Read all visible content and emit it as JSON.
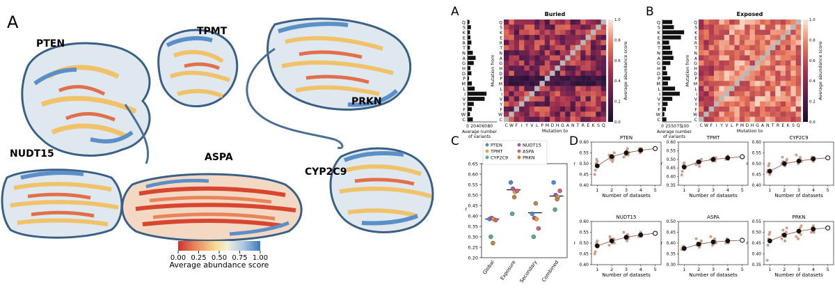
{
  "structures": {
    "panel_letter": "A",
    "proteins": [
      "PTEN",
      "TPMT",
      "PRKN",
      "NUDT15",
      "ASPA",
      "CYP2C9"
    ],
    "colorbar": {
      "ticks": [
        "0.00",
        "0.25",
        "0.50",
        "0.75",
        "1.00"
      ],
      "label": "Average abundance score",
      "colors": [
        "#c9342b",
        "#e8845a",
        "#f6d98e",
        "#f4efd8",
        "#a9c7e2",
        "#3c77b8"
      ]
    }
  },
  "heatmaps": {
    "residues": [
      "Q",
      "S",
      "K",
      "E",
      "R",
      "T",
      "N",
      "A",
      "G",
      "H",
      "D",
      "P",
      "M",
      "L",
      "I",
      "V",
      "Y",
      "F",
      "W",
      "C"
    ],
    "xticks": [
      "C",
      "W",
      "F",
      "I",
      "Y",
      "V",
      "L",
      "P",
      "M",
      "D",
      "H",
      "G",
      "A",
      "N",
      "T",
      "R",
      "E",
      "K",
      "S",
      "Q"
    ],
    "ylabel": "Mutation from",
    "xlabel": "Mutation to",
    "bar_xlabel": "Average number\nof variants",
    "cbar_label": "Average abundance score",
    "cbar_ticks": [
      "0.0",
      "0.2",
      "0.4",
      "0.6",
      "0.8",
      "1.0"
    ],
    "buried": {
      "letter": "A",
      "title": "Buried",
      "bar_ticks": [
        "0",
        "20",
        "40",
        "60",
        "80"
      ],
      "bar_max": 100,
      "bar_values": [
        8,
        14,
        10,
        12,
        16,
        10,
        22,
        34,
        26,
        12,
        16,
        6,
        18,
        30,
        80,
        72,
        26,
        18,
        10,
        22
      ]
    },
    "exposed": {
      "letter": "B",
      "title": "Exposed",
      "bar_ticks": [
        "0",
        "25",
        "50",
        "75",
        "100"
      ],
      "bar_max": 120,
      "bar_values": [
        50,
        58,
        110,
        94,
        34,
        40,
        50,
        56,
        40,
        18,
        24,
        40,
        28,
        64,
        88,
        50,
        26,
        18,
        10,
        20
      ]
    }
  },
  "chart_data": [
    {
      "type": "scatter",
      "panel_letter": "C",
      "categories": [
        "Global",
        "Exposure",
        "Secondary",
        "Combined"
      ],
      "ylabel": "r",
      "ylim": [
        0.2,
        0.65
      ],
      "yticks": [
        "0.20",
        "0.25",
        "0.30",
        "0.35",
        "0.40",
        "0.45",
        "0.50",
        "0.55",
        "0.60",
        "0.65"
      ],
      "legend": [
        {
          "name": "PTEN",
          "color": "#4c8cd0"
        },
        {
          "name": "NUDT15",
          "color": "#a85aa0"
        },
        {
          "name": "TPMT",
          "color": "#e8a33c"
        },
        {
          "name": "ASPA",
          "color": "#d6606f"
        },
        {
          "name": "CYP2C9",
          "color": "#5aae8a"
        },
        {
          "name": "PRKN",
          "color": "#b8864e"
        }
      ],
      "medians": [
        0.385,
        0.525,
        0.415,
        0.495
      ],
      "points": [
        [
          0.385,
          0.39,
          0.385,
          0.38,
          0.3,
          0.27
        ],
        [
          0.56,
          0.53,
          0.515,
          0.52,
          0.41,
          0.49
        ],
        [
          0.41,
          0.39,
          0.385,
          0.34,
          0.3,
          0.46
        ],
        [
          0.56,
          0.5,
          0.49,
          0.52,
          0.43,
          0.48
        ]
      ]
    },
    {
      "type": "scatter",
      "panel_letter": "D",
      "xlabel": "Number of datasets",
      "ylabel": "r",
      "xticks": [
        "1",
        "2",
        "3",
        "4",
        "5"
      ],
      "subplots": [
        {
          "title": "PTEN",
          "ylim": [
            0.4,
            0.6
          ],
          "yticks": [
            "0.40",
            "0.45",
            "0.50",
            "0.55",
            "0.60"
          ],
          "means": [
            0.49,
            0.533,
            0.55,
            0.562,
            0.57
          ],
          "scatter": [
            [
              1,
              0.45
            ],
            [
              1,
              0.47
            ],
            [
              1,
              0.5
            ],
            [
              1,
              0.52
            ],
            [
              1,
              0.51
            ],
            [
              2,
              0.51
            ],
            [
              2,
              0.52
            ],
            [
              2,
              0.53
            ],
            [
              2,
              0.55
            ],
            [
              2,
              0.54
            ],
            [
              2,
              0.53
            ],
            [
              2,
              0.52
            ],
            [
              3,
              0.54
            ],
            [
              3,
              0.55
            ],
            [
              3,
              0.56
            ],
            [
              3,
              0.57
            ],
            [
              3,
              0.54
            ],
            [
              3,
              0.55
            ],
            [
              3,
              0.53
            ],
            [
              4,
              0.56
            ],
            [
              4,
              0.57
            ],
            [
              4,
              0.55
            ],
            [
              4,
              0.56
            ],
            [
              4,
              0.57
            ]
          ]
        },
        {
          "title": "TPMT",
          "ylim": [
            0.35,
            0.6
          ],
          "yticks": [
            "0.35",
            "0.40",
            "0.45",
            "0.50",
            "0.55",
            "0.60"
          ],
          "means": [
            0.455,
            0.485,
            0.5,
            0.508,
            0.515
          ],
          "scatter": [
            [
              1,
              0.41
            ],
            [
              1,
              0.43
            ],
            [
              1,
              0.46
            ],
            [
              1,
              0.47
            ],
            [
              1,
              0.48
            ],
            [
              2,
              0.46
            ],
            [
              2,
              0.48
            ],
            [
              2,
              0.49
            ],
            [
              2,
              0.5
            ],
            [
              2,
              0.47
            ],
            [
              2,
              0.48
            ],
            [
              2,
              0.49
            ],
            [
              3,
              0.49
            ],
            [
              3,
              0.5
            ],
            [
              3,
              0.51
            ],
            [
              3,
              0.5
            ],
            [
              3,
              0.49
            ],
            [
              3,
              0.51
            ],
            [
              3,
              0.5
            ],
            [
              4,
              0.5
            ],
            [
              4,
              0.51
            ],
            [
              4,
              0.51
            ],
            [
              4,
              0.52
            ],
            [
              4,
              0.5
            ]
          ]
        },
        {
          "title": "CYP2C9",
          "ylim": [
            0.4,
            0.6
          ],
          "yticks": [
            "0.40",
            "0.45",
            "0.50",
            "0.55",
            "0.60"
          ],
          "means": [
            0.465,
            0.5,
            0.512,
            0.522,
            0.527
          ],
          "scatter": [
            [
              1,
              0.46
            ],
            [
              1,
              0.47
            ],
            [
              1,
              0.49
            ],
            [
              1,
              0.5
            ],
            [
              1,
              0.45
            ],
            [
              2,
              0.49
            ],
            [
              2,
              0.5
            ],
            [
              2,
              0.51
            ],
            [
              2,
              0.52
            ],
            [
              2,
              0.5
            ],
            [
              2,
              0.53
            ],
            [
              2,
              0.51
            ],
            [
              3,
              0.5
            ],
            [
              3,
              0.51
            ],
            [
              3,
              0.52
            ],
            [
              3,
              0.53
            ],
            [
              3,
              0.52
            ],
            [
              3,
              0.51
            ],
            [
              3,
              0.54
            ],
            [
              4,
              0.52
            ],
            [
              4,
              0.53
            ],
            [
              4,
              0.52
            ],
            [
              4,
              0.51
            ],
            [
              4,
              0.53
            ]
          ]
        },
        {
          "title": "NUDT15",
          "ylim": [
            0.4,
            0.6
          ],
          "yticks": [
            "0.40",
            "0.45",
            "0.50",
            "0.55",
            "0.60"
          ],
          "means": [
            0.487,
            0.51,
            0.527,
            0.538,
            0.545
          ],
          "scatter": [
            [
              1,
              0.45
            ],
            [
              1,
              0.46
            ],
            [
              1,
              0.49
            ],
            [
              1,
              0.5
            ],
            [
              1,
              0.51
            ],
            [
              2,
              0.5
            ],
            [
              2,
              0.51
            ],
            [
              2,
              0.52
            ],
            [
              2,
              0.5
            ],
            [
              2,
              0.49
            ],
            [
              2,
              0.53
            ],
            [
              2,
              0.52
            ],
            [
              3,
              0.52
            ],
            [
              3,
              0.53
            ],
            [
              3,
              0.51
            ],
            [
              3,
              0.54
            ],
            [
              3,
              0.52
            ],
            [
              3,
              0.53
            ],
            [
              3,
              0.55
            ],
            [
              4,
              0.53
            ],
            [
              4,
              0.54
            ],
            [
              4,
              0.54
            ],
            [
              4,
              0.55
            ],
            [
              4,
              0.53
            ]
          ]
        },
        {
          "title": "ASPA",
          "ylim": [
            0.3,
            0.5
          ],
          "yticks": [
            "0.30",
            "0.35",
            "0.40",
            "0.45",
            "0.50"
          ],
          "means": [
            0.375,
            0.395,
            0.405,
            0.41,
            0.413
          ],
          "scatter": [
            [
              1,
              0.37
            ],
            [
              1,
              0.38
            ],
            [
              1,
              0.375
            ],
            [
              1,
              0.385
            ],
            [
              1,
              0.37
            ],
            [
              2,
              0.38
            ],
            [
              2,
              0.39
            ],
            [
              2,
              0.4
            ],
            [
              2,
              0.41
            ],
            [
              2,
              0.42
            ],
            [
              2,
              0.39
            ],
            [
              2,
              0.4
            ],
            [
              3,
              0.39
            ],
            [
              3,
              0.4
            ],
            [
              3,
              0.41
            ],
            [
              3,
              0.42
            ],
            [
              3,
              0.41
            ],
            [
              3,
              0.4
            ],
            [
              3,
              0.43
            ],
            [
              4,
              0.4
            ],
            [
              4,
              0.41
            ],
            [
              4,
              0.42
            ],
            [
              4,
              0.41
            ],
            [
              4,
              0.4
            ]
          ]
        },
        {
          "title": "PRKN",
          "ylim": [
            0.35,
            0.55
          ],
          "yticks": [
            "0.35",
            "0.40",
            "0.45",
            "0.50",
            "0.55"
          ],
          "means": [
            0.46,
            0.487,
            0.505,
            0.515,
            0.52
          ],
          "scatter": [
            [
              1,
              0.37
            ],
            [
              1,
              0.44
            ],
            [
              1,
              0.47
            ],
            [
              1,
              0.49
            ],
            [
              1,
              0.5
            ],
            [
              2,
              0.46
            ],
            [
              2,
              0.48
            ],
            [
              2,
              0.5
            ],
            [
              2,
              0.52
            ],
            [
              2,
              0.47
            ],
            [
              2,
              0.49
            ],
            [
              2,
              0.51
            ],
            [
              3,
              0.47
            ],
            [
              3,
              0.5
            ],
            [
              3,
              0.51
            ],
            [
              3,
              0.52
            ],
            [
              3,
              0.49
            ],
            [
              3,
              0.53
            ],
            [
              3,
              0.48
            ],
            [
              4,
              0.5
            ],
            [
              4,
              0.52
            ],
            [
              4,
              0.51
            ],
            [
              4,
              0.53
            ],
            [
              4,
              0.5
            ]
          ]
        }
      ]
    }
  ]
}
